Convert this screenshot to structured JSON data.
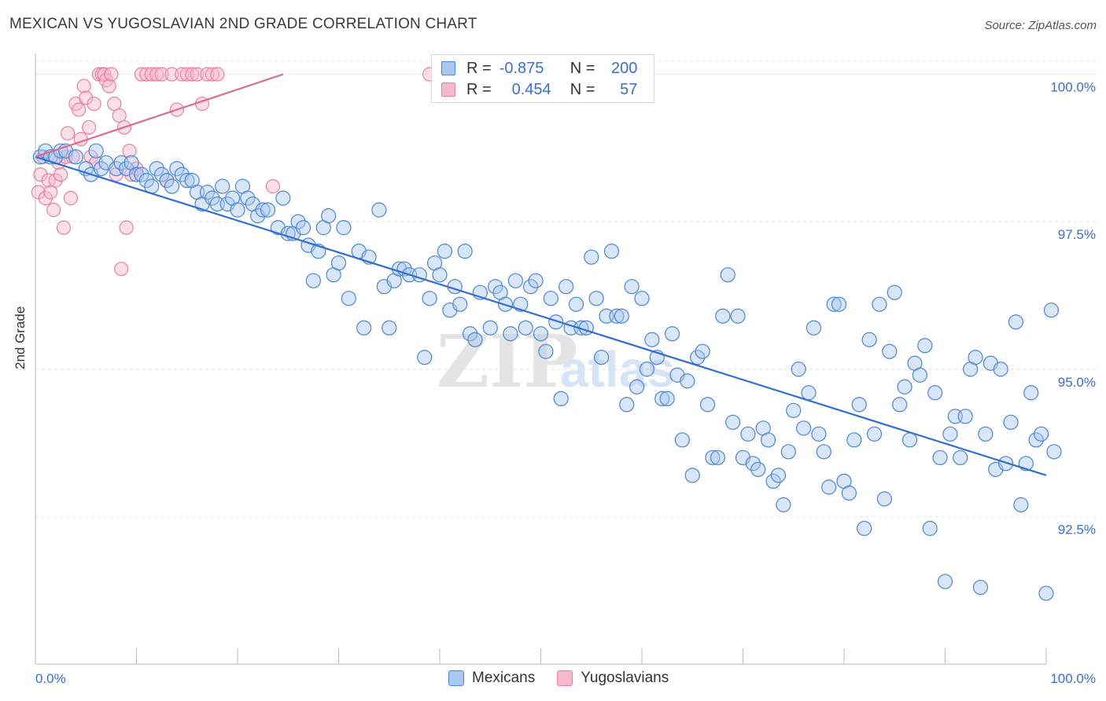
{
  "title": "MEXICAN VS YUGOSLAVIAN 2ND GRADE CORRELATION CHART",
  "source": "Source: ZipAtlas.com",
  "colors": {
    "mexicans_fill": "#a8c8f0",
    "mexicans_stroke": "#4a86d4",
    "mexicans_line": "#2f6fd0",
    "yugoslavians_fill": "#f7b8cc",
    "yugoslavians_stroke": "#e880a0",
    "yugoslavians_line": "#e06890",
    "axis_text": "#3b6fc9",
    "grid": "#e0e0e0"
  },
  "legend": {
    "rows": [
      {
        "r_label": "R =",
        "r_value": "-0.875",
        "n_label": "N =",
        "n_value": "200"
      },
      {
        "r_label": "R =",
        "r_value": "0.454",
        "n_label": "N =",
        "n_value": "57"
      }
    ]
  },
  "bottom_legend": [
    "Mexicans",
    "Yugoslavians"
  ],
  "chart_data": {
    "type": "scatter",
    "xlabel": "",
    "ylabel": "2nd Grade",
    "xlim": [
      0,
      100
    ],
    "ylim": [
      90.0,
      100.3
    ],
    "x_tick_labels": [
      "0.0%",
      "100.0%"
    ],
    "y_ticks": [
      92.5,
      95.0,
      97.5,
      100.0
    ],
    "y_tick_labels": [
      "92.5%",
      "95.0%",
      "97.5%",
      "100.0%"
    ],
    "grid": true,
    "legend_placement": "top-center",
    "series": [
      {
        "name": "Mexicans",
        "trend": {
          "x": [
            0,
            100
          ],
          "y": [
            98.6,
            93.2
          ]
        },
        "points": [
          [
            0.5,
            98.6
          ],
          [
            1,
            98.7
          ],
          [
            1.5,
            98.6
          ],
          [
            2,
            98.6
          ],
          [
            2.5,
            98.7
          ],
          [
            3,
            98.7
          ],
          [
            4,
            98.6
          ],
          [
            5,
            98.4
          ],
          [
            5.5,
            98.3
          ],
          [
            6,
            98.7
          ],
          [
            6.5,
            98.4
          ],
          [
            7,
            98.5
          ],
          [
            8,
            98.4
          ],
          [
            8.5,
            98.5
          ],
          [
            9,
            98.4
          ],
          [
            9.5,
            98.5
          ],
          [
            10,
            98.3
          ],
          [
            10.5,
            98.3
          ],
          [
            11,
            98.2
          ],
          [
            11.5,
            98.1
          ],
          [
            12,
            98.4
          ],
          [
            12.5,
            98.3
          ],
          [
            13,
            98.2
          ],
          [
            13.5,
            98.1
          ],
          [
            14,
            98.4
          ],
          [
            14.5,
            98.3
          ],
          [
            15,
            98.2
          ],
          [
            15.5,
            98.2
          ],
          [
            16,
            98.0
          ],
          [
            16.5,
            97.8
          ],
          [
            17,
            98.0
          ],
          [
            17.5,
            97.9
          ],
          [
            18,
            97.8
          ],
          [
            18.5,
            98.1
          ],
          [
            19,
            97.8
          ],
          [
            19.5,
            97.9
          ],
          [
            20,
            97.7
          ],
          [
            20.5,
            98.1
          ],
          [
            21,
            97.9
          ],
          [
            21.5,
            97.8
          ],
          [
            22,
            97.6
          ],
          [
            22.5,
            97.7
          ],
          [
            23,
            97.7
          ],
          [
            24,
            97.4
          ],
          [
            24.5,
            97.9
          ],
          [
            25,
            97.3
          ],
          [
            25.5,
            97.3
          ],
          [
            26,
            97.5
          ],
          [
            26.5,
            97.4
          ],
          [
            27,
            97.1
          ],
          [
            27.5,
            96.5
          ],
          [
            28,
            97.0
          ],
          [
            28.5,
            97.4
          ],
          [
            29,
            97.6
          ],
          [
            29.5,
            96.6
          ],
          [
            30,
            96.8
          ],
          [
            30.5,
            97.4
          ],
          [
            31,
            96.2
          ],
          [
            32,
            97.0
          ],
          [
            32.5,
            95.7
          ],
          [
            33,
            96.9
          ],
          [
            34,
            97.7
          ],
          [
            34.5,
            96.4
          ],
          [
            35,
            95.7
          ],
          [
            35.5,
            96.5
          ],
          [
            36,
            96.7
          ],
          [
            36.5,
            96.7
          ],
          [
            37,
            96.6
          ],
          [
            38,
            96.6
          ],
          [
            38.5,
            95.2
          ],
          [
            39,
            96.2
          ],
          [
            39.5,
            96.8
          ],
          [
            40,
            96.6
          ],
          [
            40.5,
            97.0
          ],
          [
            41,
            96.0
          ],
          [
            41.5,
            96.4
          ],
          [
            42,
            96.1
          ],
          [
            42.5,
            97.0
          ],
          [
            43,
            95.6
          ],
          [
            43.5,
            95.5
          ],
          [
            44,
            96.3
          ],
          [
            45,
            95.7
          ],
          [
            45.5,
            96.4
          ],
          [
            46,
            96.3
          ],
          [
            46.5,
            96.1
          ],
          [
            47,
            95.6
          ],
          [
            47.5,
            96.5
          ],
          [
            48,
            96.1
          ],
          [
            48.5,
            95.7
          ],
          [
            49,
            96.4
          ],
          [
            49.5,
            96.5
          ],
          [
            50,
            95.6
          ],
          [
            50.5,
            95.3
          ],
          [
            51,
            96.2
          ],
          [
            51.5,
            95.8
          ],
          [
            52,
            94.5
          ],
          [
            52.5,
            96.4
          ],
          [
            53,
            95.7
          ],
          [
            53.5,
            96.1
          ],
          [
            54,
            95.7
          ],
          [
            54.5,
            95.7
          ],
          [
            55,
            96.9
          ],
          [
            55.5,
            96.2
          ],
          [
            56,
            95.2
          ],
          [
            56.5,
            95.9
          ],
          [
            57,
            97.0
          ],
          [
            57.5,
            95.9
          ],
          [
            58,
            95.9
          ],
          [
            58.5,
            94.4
          ],
          [
            59,
            96.4
          ],
          [
            59.5,
            94.7
          ],
          [
            60,
            96.2
          ],
          [
            60.5,
            95.0
          ],
          [
            61,
            95.5
          ],
          [
            61.5,
            95.2
          ],
          [
            62,
            94.5
          ],
          [
            62.5,
            94.5
          ],
          [
            63,
            95.6
          ],
          [
            63.5,
            94.9
          ],
          [
            64,
            93.8
          ],
          [
            64.5,
            94.8
          ],
          [
            65,
            93.2
          ],
          [
            65.5,
            95.2
          ],
          [
            66,
            95.3
          ],
          [
            66.5,
            94.4
          ],
          [
            67,
            93.5
          ],
          [
            67.5,
            93.5
          ],
          [
            68,
            95.9
          ],
          [
            68.5,
            96.6
          ],
          [
            69,
            94.1
          ],
          [
            69.5,
            95.9
          ],
          [
            70,
            93.5
          ],
          [
            70.5,
            93.9
          ],
          [
            71,
            93.4
          ],
          [
            71.5,
            93.3
          ],
          [
            72,
            94.0
          ],
          [
            72.5,
            93.8
          ],
          [
            73,
            93.1
          ],
          [
            73.5,
            93.2
          ],
          [
            74,
            92.7
          ],
          [
            74.5,
            93.6
          ],
          [
            75,
            94.3
          ],
          [
            75.5,
            95.0
          ],
          [
            76,
            94.0
          ],
          [
            76.5,
            94.6
          ],
          [
            77,
            95.7
          ],
          [
            77.5,
            93.9
          ],
          [
            78,
            93.6
          ],
          [
            78.5,
            93.0
          ],
          [
            79,
            96.1
          ],
          [
            79.5,
            96.1
          ],
          [
            80,
            93.1
          ],
          [
            80.5,
            92.9
          ],
          [
            81,
            93.8
          ],
          [
            81.5,
            94.4
          ],
          [
            82,
            92.3
          ],
          [
            82.5,
            95.5
          ],
          [
            83,
            93.9
          ],
          [
            83.5,
            96.1
          ],
          [
            84,
            92.8
          ],
          [
            84.5,
            95.3
          ],
          [
            85,
            96.3
          ],
          [
            85.5,
            94.4
          ],
          [
            86,
            94.7
          ],
          [
            86.5,
            93.8
          ],
          [
            87,
            95.1
          ],
          [
            87.5,
            94.9
          ],
          [
            88,
            95.4
          ],
          [
            88.5,
            92.3
          ],
          [
            89,
            94.6
          ],
          [
            89.5,
            93.5
          ],
          [
            90,
            91.4
          ],
          [
            90.5,
            93.9
          ],
          [
            91,
            94.2
          ],
          [
            91.5,
            93.5
          ],
          [
            92,
            94.2
          ],
          [
            92.5,
            95.0
          ],
          [
            93,
            95.2
          ],
          [
            93.5,
            91.3
          ],
          [
            94,
            93.9
          ],
          [
            94.5,
            95.1
          ],
          [
            95,
            93.3
          ],
          [
            95.5,
            95.0
          ],
          [
            96,
            93.4
          ],
          [
            96.5,
            94.1
          ],
          [
            97,
            95.8
          ],
          [
            97.5,
            92.7
          ],
          [
            98,
            93.4
          ],
          [
            98.5,
            94.6
          ],
          [
            99,
            93.8
          ],
          [
            99.5,
            93.9
          ],
          [
            100,
            91.2
          ],
          [
            100.5,
            96.0
          ],
          [
            101,
            93.6
          ]
        ]
      },
      {
        "name": "Yugoslavians",
        "trend": {
          "x": [
            0,
            24.5
          ],
          "y": [
            98.6,
            100.0
          ]
        },
        "points": [
          [
            0.3,
            98.0
          ],
          [
            0.5,
            98.3
          ],
          [
            0.8,
            98.6
          ],
          [
            1,
            97.9
          ],
          [
            1.3,
            98.2
          ],
          [
            1.5,
            98.0
          ],
          [
            1.8,
            97.7
          ],
          [
            2,
            98.2
          ],
          [
            2.3,
            98.5
          ],
          [
            2.5,
            98.3
          ],
          [
            2.8,
            97.4
          ],
          [
            3,
            98.6
          ],
          [
            3.2,
            99.0
          ],
          [
            3.5,
            97.9
          ],
          [
            3.7,
            98.6
          ],
          [
            4,
            99.5
          ],
          [
            4.3,
            99.4
          ],
          [
            4.5,
            98.9
          ],
          [
            4.8,
            99.8
          ],
          [
            5,
            99.6
          ],
          [
            5.3,
            99.1
          ],
          [
            5.5,
            98.6
          ],
          [
            5.8,
            99.5
          ],
          [
            6,
            98.5
          ],
          [
            6.3,
            100.0
          ],
          [
            6.6,
            100.0
          ],
          [
            6.8,
            100.0
          ],
          [
            7,
            99.9
          ],
          [
            7.3,
            99.8
          ],
          [
            7.5,
            100.0
          ],
          [
            7.8,
            99.5
          ],
          [
            8,
            98.3
          ],
          [
            8.3,
            99.3
          ],
          [
            8.5,
            96.7
          ],
          [
            8.8,
            99.1
          ],
          [
            9,
            97.4
          ],
          [
            9.3,
            98.7
          ],
          [
            9.5,
            98.3
          ],
          [
            10,
            98.4
          ],
          [
            10.5,
            100.0
          ],
          [
            11,
            100.0
          ],
          [
            11.5,
            100.0
          ],
          [
            12,
            100.0
          ],
          [
            12.5,
            100.0
          ],
          [
            13,
            98.2
          ],
          [
            13.5,
            100.0
          ],
          [
            14,
            99.4
          ],
          [
            14.5,
            100.0
          ],
          [
            15,
            100.0
          ],
          [
            15.5,
            100.0
          ],
          [
            16,
            100.0
          ],
          [
            16.5,
            99.5
          ],
          [
            17,
            100.0
          ],
          [
            17.5,
            100.0
          ],
          [
            18,
            100.0
          ],
          [
            23.5,
            98.1
          ],
          [
            39,
            100.0
          ]
        ]
      }
    ]
  }
}
